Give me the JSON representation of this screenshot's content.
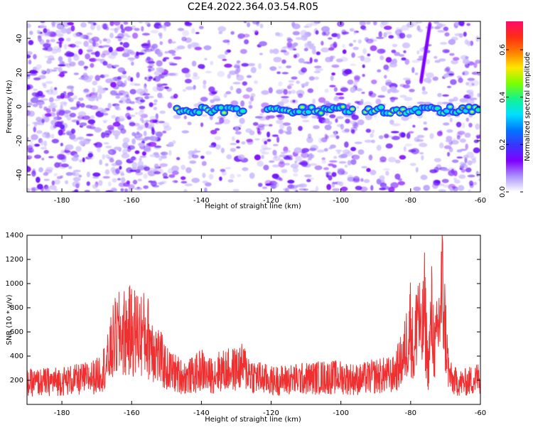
{
  "title": "C2E4.2022.364.03.54.R05",
  "chart_data": [
    {
      "type": "heatmap",
      "xlabel": "Height of straight line (km)",
      "ylabel": "Frequency (Hz)",
      "xlim": [
        -190,
        -60
      ],
      "ylim": [
        -50,
        50
      ],
      "xticks": [
        -180,
        -160,
        -140,
        -120,
        -100,
        -80,
        -60
      ],
      "yticks": [
        -40,
        -20,
        0,
        20,
        40
      ],
      "colorbar": {
        "label": "Normalized spectral amplitude",
        "range": [
          0.0,
          0.72
        ],
        "ticks": [
          0.0,
          0.2,
          0.4,
          0.6
        ],
        "tick_labels": [
          "0.0",
          "0.2",
          "0.4",
          "0.6"
        ],
        "colors": [
          "#ffffff",
          "#ab93ff",
          "#7f00ff",
          "#3a35ff",
          "#0077ff",
          "#00e0ff",
          "#14f38f",
          "#7bff00",
          "#ffe600",
          "#ff7f00",
          "#ff2c15",
          "#ff0b6b"
        ]
      },
      "signal_band": {
        "center_frequency_hz": -2,
        "segments_km": [
          [
            -147,
            -128
          ],
          [
            -121,
            -96
          ],
          [
            -93,
            -60
          ]
        ]
      },
      "grid": false
    },
    {
      "type": "line",
      "color": "#f03030",
      "xlabel": "Height of straight line (km)",
      "ylabel": "SNR (10 * v/v)",
      "xlim": [
        -190,
        -60
      ],
      "ylim": [
        0,
        1400
      ],
      "xticks": [
        -180,
        -160,
        -140,
        -120,
        -100,
        -80,
        -60
      ],
      "yticks": [
        200,
        400,
        600,
        800,
        1000,
        1200,
        1400
      ],
      "x": [
        -190,
        -185,
        -180,
        -175,
        -170,
        -167,
        -165,
        -163,
        -160,
        -157,
        -155,
        -152,
        -150,
        -145,
        -142,
        -140,
        -138,
        -135,
        -130,
        -128,
        -125,
        -120,
        -115,
        -110,
        -105,
        -100,
        -95,
        -90,
        -85,
        -82,
        -80,
        -79,
        -78,
        -77,
        -76,
        -75,
        -74,
        -73,
        -72,
        -71,
        -70,
        -69,
        -68,
        -65,
        -60
      ],
      "y": [
        180,
        190,
        200,
        210,
        240,
        350,
        550,
        600,
        620,
        600,
        560,
        400,
        300,
        230,
        250,
        300,
        240,
        280,
        300,
        320,
        240,
        200,
        210,
        220,
        230,
        230,
        210,
        240,
        250,
        400,
        700,
        350,
        900,
        500,
        800,
        300,
        750,
        450,
        650,
        1000,
        600,
        250,
        200,
        180,
        230
      ]
    }
  ]
}
